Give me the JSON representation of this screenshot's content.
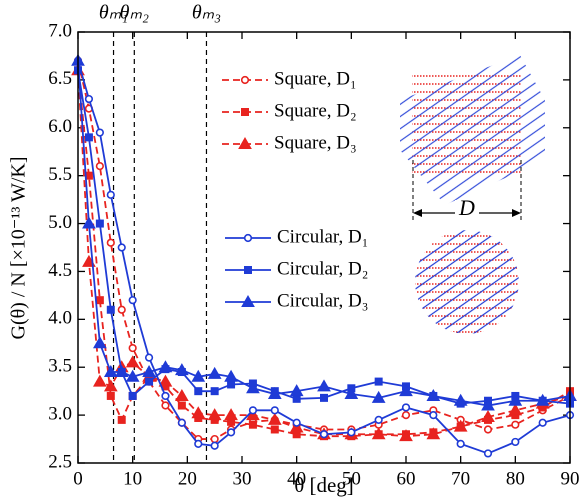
{
  "chart_data": {
    "type": "line",
    "xlabel": "θ [deg]",
    "ylabel": "G(θ) / N [×10⁻¹³ W/K]",
    "x": [
      0,
      2,
      4,
      6,
      8,
      10,
      13,
      16,
      19,
      22,
      25,
      28,
      32,
      36,
      40,
      45,
      50,
      55,
      60,
      65,
      70,
      75,
      80,
      85,
      90
    ],
    "xlim": [
      0,
      90
    ],
    "xticks": [
      0,
      10,
      20,
      30,
      40,
      50,
      60,
      70,
      80,
      90
    ],
    "ylim": [
      2.5,
      7
    ],
    "yticks": [
      2.5,
      {
        "value": 3,
        "label": "3.0"
      },
      3.5,
      {
        "value": 4,
        "label": "4.0"
      },
      4.5,
      {
        "value": 5,
        "label": "5.0"
      },
      5.5,
      {
        "value": 6,
        "label": "6.0"
      },
      6.5,
      {
        "value": 7,
        "label": "7.0"
      }
    ],
    "series": [
      {
        "name": "Square, D₁",
        "color": "#e8231f",
        "marker": "circle",
        "dashed": true,
        "values": [
          6.7,
          6.2,
          5.6,
          4.8,
          4.1,
          3.7,
          3.35,
          3.1,
          2.92,
          2.75,
          2.75,
          2.85,
          2.93,
          2.95,
          2.9,
          2.85,
          2.85,
          2.9,
          3.0,
          3.05,
          2.95,
          2.85,
          2.9,
          3.05,
          3.2
        ]
      },
      {
        "name": "Square, D₂",
        "color": "#e8231f",
        "marker": "square",
        "dashed": true,
        "values": [
          6.6,
          5.5,
          4.2,
          3.2,
          2.95,
          3.2,
          3.4,
          3.3,
          3.1,
          2.97,
          2.95,
          2.93,
          2.9,
          2.85,
          2.8,
          2.78,
          2.78,
          2.8,
          2.8,
          2.82,
          2.88,
          2.95,
          3.0,
          3.08,
          3.25
        ]
      },
      {
        "name": "Square, D₃",
        "color": "#e8231f",
        "marker": "triangle",
        "dashed": true,
        "values": [
          6.6,
          4.6,
          3.35,
          3.3,
          3.5,
          3.55,
          3.4,
          3.35,
          3.2,
          3.02,
          3.0,
          3.0,
          3.0,
          2.95,
          2.87,
          2.8,
          2.8,
          2.8,
          2.78,
          2.8,
          2.88,
          2.98,
          3.05,
          3.12,
          3.2
        ]
      },
      {
        "name": "Circular, D₁",
        "color": "#1f3bd6",
        "marker": "circle",
        "dashed": false,
        "values": [
          6.7,
          6.3,
          5.95,
          5.3,
          4.75,
          4.2,
          3.6,
          3.2,
          2.92,
          2.7,
          2.68,
          2.82,
          3.05,
          3.05,
          2.92,
          2.8,
          2.82,
          2.95,
          3.08,
          3.0,
          2.7,
          2.6,
          2.72,
          2.92,
          3.0
        ]
      },
      {
        "name": "Circular, D₂",
        "color": "#1f3bd6",
        "marker": "square",
        "dashed": false,
        "values": [
          6.6,
          5.9,
          5.0,
          4.1,
          3.45,
          3.2,
          3.35,
          3.48,
          3.45,
          3.25,
          3.25,
          3.32,
          3.33,
          3.25,
          3.17,
          3.18,
          3.28,
          3.35,
          3.3,
          3.2,
          3.12,
          3.15,
          3.2,
          3.15,
          3.12
        ]
      },
      {
        "name": "Circular, D₃",
        "color": "#1f3bd6",
        "marker": "triangle",
        "dashed": false,
        "values": [
          6.7,
          5.0,
          3.75,
          3.45,
          3.45,
          3.4,
          3.45,
          3.5,
          3.47,
          3.4,
          3.43,
          3.4,
          3.28,
          3.22,
          3.25,
          3.3,
          3.22,
          3.18,
          3.25,
          3.2,
          3.15,
          3.1,
          3.15,
          3.15,
          3.2
        ]
      }
    ],
    "annotations": [
      {
        "label": "θₘ₁",
        "x": 6.5
      },
      {
        "label": "θₘ₂",
        "x": 10.3
      },
      {
        "label": "θₘ₃",
        "x": 23.5
      }
    ],
    "inset_label": "D"
  }
}
